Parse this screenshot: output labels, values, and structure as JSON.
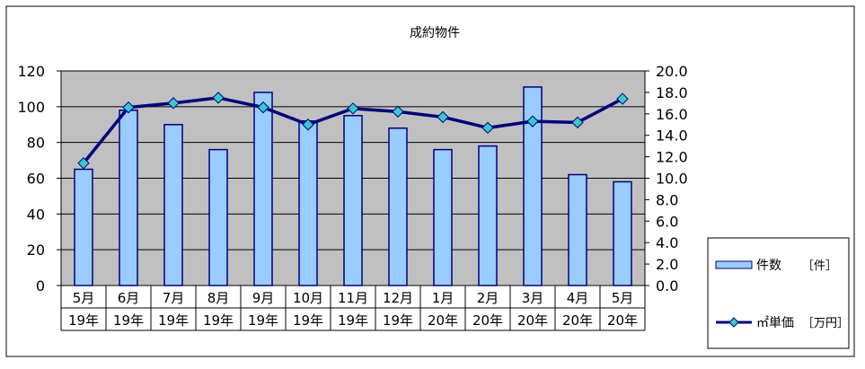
{
  "chart_data": {
    "type": "bar+line",
    "title": "成約物件",
    "categories": [
      "5月",
      "6月",
      "7月",
      "8月",
      "9月",
      "10月",
      "11月",
      "12月",
      "1月",
      "2月",
      "3月",
      "4月",
      "5月"
    ],
    "category_years": [
      "19年",
      "19年",
      "19年",
      "19年",
      "19年",
      "19年",
      "19年",
      "19年",
      "20年",
      "20年",
      "20年",
      "20年",
      "20年"
    ],
    "series": [
      {
        "name": "件数",
        "unit": "［件］",
        "kind": "bar",
        "axis": "left",
        "color": "#99ccff",
        "values": [
          65,
          98,
          90,
          76,
          108,
          92,
          95,
          88,
          76,
          78,
          111,
          62,
          58
        ]
      },
      {
        "name": "㎡単価",
        "unit": "［万円］",
        "kind": "line",
        "axis": "right",
        "color": "#000080",
        "marker_color": "#33cccc",
        "values": [
          11.4,
          16.6,
          17.0,
          17.5,
          16.6,
          15.0,
          16.5,
          16.2,
          15.7,
          14.7,
          15.3,
          15.2,
          17.4
        ]
      }
    ],
    "y_left": {
      "min": 0,
      "max": 120,
      "step": 20,
      "ticks": [
        "0",
        "20",
        "40",
        "60",
        "80",
        "100",
        "120"
      ]
    },
    "y_right": {
      "min": 0,
      "max": 20,
      "step": 2,
      "ticks": [
        "0.0",
        "2.0",
        "4.0",
        "6.0",
        "8.0",
        "10.0",
        "12.0",
        "14.0",
        "16.0",
        "18.0",
        "20.0"
      ]
    },
    "plot_background": "#c0c0c0",
    "grid": true,
    "legend": "bottom-right"
  }
}
